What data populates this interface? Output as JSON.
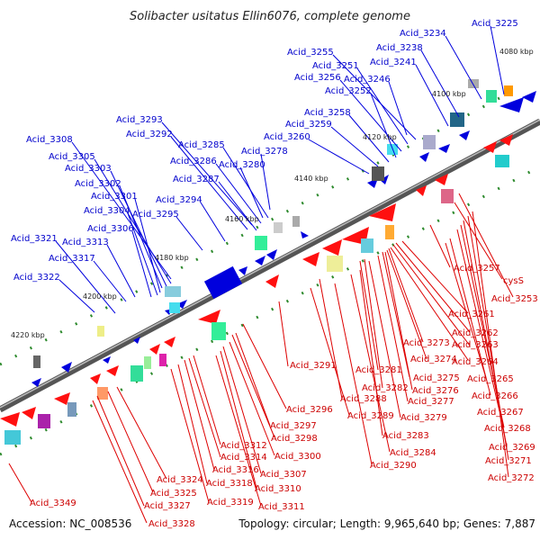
{
  "title": "Solibacter usitatus Ellin6076, complete genome",
  "footer": {
    "accession": "Accession: NC_008536",
    "topology": "Topology: circular; Length: 9,965,640 bp; Genes: 7,887"
  },
  "scale_marks": [
    "4080 kbp",
    "4100 kbp",
    "4120 kbp",
    "4140 kbp",
    "4160 kbp",
    "4180 kbp",
    "4200 kbp",
    "4220 kbp"
  ],
  "blue_labels": [
    "Acid_3225",
    "Acid_3234",
    "Acid_3238",
    "Acid_3241",
    "Acid_3255",
    "Acid_3251",
    "Acid_3256",
    "Acid_3246",
    "Acid_3252",
    "Acid_3258",
    "Acid_3259",
    "Acid_3260",
    "Acid_3293",
    "Acid_3292",
    "Acid_3285",
    "Acid_3278",
    "Acid_3286",
    "Acid_3280",
    "Acid_3287",
    "Acid_3308",
    "Acid_3305",
    "Acid_3303",
    "Acid_3302",
    "Acid_3301",
    "Acid_3294",
    "Acid_3304",
    "Acid_3295",
    "Acid_3306",
    "Acid_3321",
    "Acid_3313",
    "Acid_3317",
    "Acid_3322"
  ],
  "red_labels": [
    "Acid_3257",
    "cysS",
    "Acid_3253",
    "Acid_3261",
    "Acid_3262",
    "Acid_3273",
    "Acid_3263",
    "Acid_3274",
    "Acid_3264",
    "Acid_3291",
    "Acid_3281",
    "Acid_3275",
    "Acid_3265",
    "Acid_3282",
    "Acid_3276",
    "Acid_3288",
    "Acid_3277",
    "Acid_3266",
    "Acid_3289",
    "Acid_3279",
    "Acid_3267",
    "Acid_3296",
    "Acid_3268",
    "Acid_3297",
    "Acid_3283",
    "Acid_3298",
    "Acid_3312",
    "Acid_3269",
    "Acid_3314",
    "Acid_3300",
    "Acid_3284",
    "Acid_3271",
    "Acid_3316",
    "Acid_3290",
    "Acid_3307",
    "Acid_3324",
    "Acid_3318",
    "Acid_3272",
    "Acid_3310",
    "Acid_3325",
    "Acid_3319",
    "Acid_3311",
    "Acid_3327",
    "Acid_3349",
    "Acid_3328"
  ]
}
